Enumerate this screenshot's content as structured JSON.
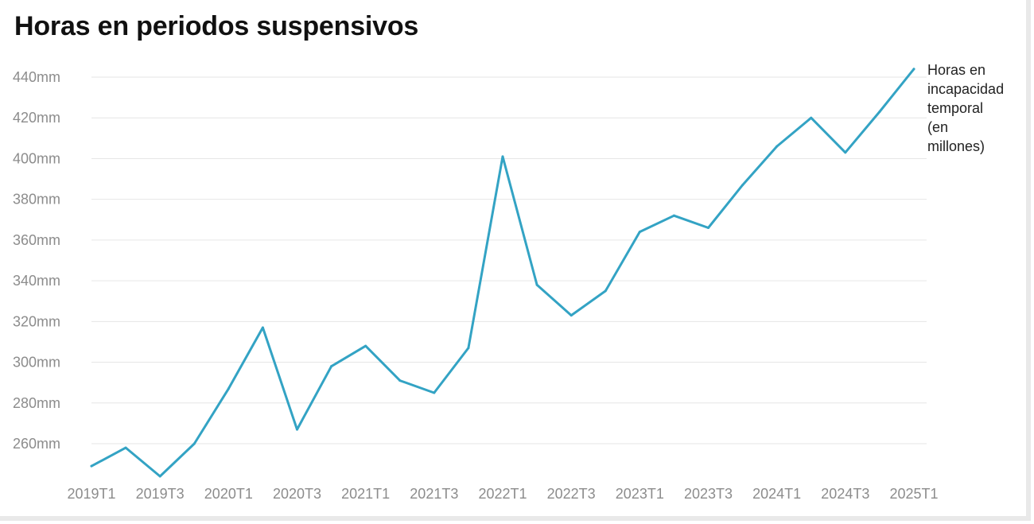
{
  "chart_data": {
    "type": "line",
    "title": "Horas en periodos suspensivos",
    "xlabel": "",
    "ylabel": "",
    "ylim": [
      242,
      448
    ],
    "y_ticks": [
      "260mm",
      "280mm",
      "300mm",
      "320mm",
      "340mm",
      "360mm",
      "380mm",
      "400mm",
      "420mm",
      "440mm"
    ],
    "y_tick_values": [
      260,
      280,
      300,
      320,
      340,
      360,
      380,
      400,
      420,
      440
    ],
    "x_tick_labels": [
      "2019T1",
      "2019T3",
      "2020T1",
      "2020T3",
      "2021T1",
      "2021T3",
      "2022T1",
      "2022T3",
      "2023T1",
      "2023T3",
      "2024T1",
      "2024T3",
      "2025T1"
    ],
    "categories": [
      "2019T1",
      "2019T2",
      "2019T3",
      "2019T4",
      "2020T1",
      "2020T2",
      "2020T3",
      "2020T4",
      "2021T1",
      "2021T2",
      "2021T3",
      "2021T4",
      "2022T1",
      "2022T2",
      "2022T3",
      "2022T4",
      "2023T1",
      "2023T2",
      "2023T3",
      "2023T4",
      "2024T1",
      "2024T2",
      "2024T3",
      "2024T4",
      "2025T1"
    ],
    "grid": true,
    "series": [
      {
        "name": "Horas en incapacidad temporal (en millones)",
        "name_lines": [
          "Horas en",
          "incapacidad",
          "temporal",
          "(en",
          "millones)"
        ],
        "color": "#33a3c4",
        "values": [
          249,
          258,
          244,
          260,
          287,
          317,
          267,
          298,
          308,
          291,
          285,
          307,
          401,
          338,
          323,
          335,
          364,
          372,
          366,
          387,
          406,
          420,
          403,
          423,
          444
        ]
      }
    ]
  }
}
